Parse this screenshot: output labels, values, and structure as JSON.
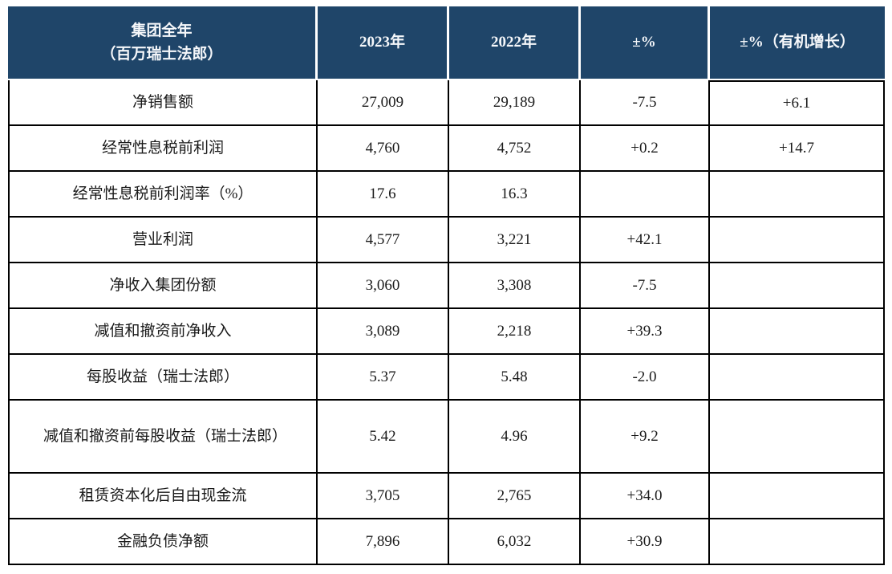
{
  "colors": {
    "header_bg": "#1f4569",
    "header_text": "#f5f7fa",
    "grid_border": "#000000",
    "body_text": "#1a1a1a"
  },
  "table": {
    "header": {
      "group_title_line1": "集团全年",
      "group_title_line2": "（百万瑞士法郎）",
      "col_2023": "2023年",
      "col_2022": "2022年",
      "col_change": "±%",
      "col_organic": "±%（有机增长）"
    },
    "rows": [
      {
        "label": "净销售额",
        "y2023": "27,009",
        "y2022": "29,189",
        "change": "-7.5",
        "organic": "+6.1"
      },
      {
        "label": "经常性息税前利润",
        "y2023": "4,760",
        "y2022": "4,752",
        "change": "+0.2",
        "organic": "+14.7"
      },
      {
        "label": "经常性息税前利润率（%）",
        "y2023": "17.6",
        "y2022": "16.3",
        "change": "",
        "organic": ""
      },
      {
        "label": "营业利润",
        "y2023": "4,577",
        "y2022": "3,221",
        "change": "+42.1",
        "organic": ""
      },
      {
        "label": "净收入集团份额",
        "y2023": "3,060",
        "y2022": "3,308",
        "change": "-7.5",
        "organic": ""
      },
      {
        "label": "减值和撤资前净收入",
        "y2023": "3,089",
        "y2022": "2,218",
        "change": "+39.3",
        "organic": ""
      },
      {
        "label": "每股收益（瑞士法郎）",
        "y2023": "5.37",
        "y2022": "5.48",
        "change": "-2.0",
        "organic": ""
      },
      {
        "label": "减值和撤资前每股收益（瑞士法郎）",
        "y2023": "5.42",
        "y2022": "4.96",
        "change": "+9.2",
        "organic": ""
      },
      {
        "label": "租赁资本化后自由现金流",
        "y2023": "3,705",
        "y2022": "2,765",
        "change": "+34.0",
        "organic": ""
      },
      {
        "label": "金融负债净额",
        "y2023": "7,896",
        "y2022": "6,032",
        "change": "+30.9",
        "organic": ""
      }
    ]
  }
}
